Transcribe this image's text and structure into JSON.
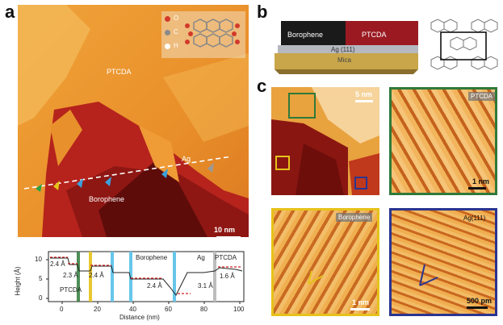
{
  "figure": {
    "panel_a": {
      "letter": "a",
      "legend_items": [
        {
          "symbol": "O",
          "color": "#d23a2a"
        },
        {
          "symbol": "C",
          "color": "#8a8a8a"
        },
        {
          "symbol": "H",
          "color": "#ffffff"
        }
      ],
      "region_labels": {
        "ptcda": "PTCDA",
        "borophene": "Borophene",
        "ag": "Ag"
      },
      "scale_bar": "10 nm"
    },
    "profile": {
      "y_axis_label": "Height (Å)",
      "x_axis_label": "Distance (nm)",
      "y_ticks": [
        "10",
        "5",
        "0"
      ],
      "x_ticks": [
        "0",
        "20",
        "40",
        "60",
        "80",
        "100"
      ],
      "region_labels": [
        "PTCDA",
        "Borophene",
        "Ag",
        "PTCDA"
      ],
      "step_labels": [
        "2.4 Å",
        "2.3 Å",
        "2.4 Å",
        "2.4 Å",
        "3.1 Å",
        "1.6 Å"
      ]
    },
    "panel_b": {
      "letter": "b",
      "layer_left": "Borophene",
      "layer_right": "PTCDA",
      "substrate_ag": "Ag (111)",
      "substrate_mica": "Mica"
    },
    "panel_c": {
      "letter": "c",
      "overview_scale": "5 nm",
      "ptcda_label": "PTCDA",
      "ptcda_scale": "1 nm",
      "borophene_label": "Borophene",
      "borophene_scale": "1 nm",
      "ag_label": "Ag(111)",
      "ag_scale": "500 pm"
    },
    "colors": {
      "ptcda_green": "#2f7a3a",
      "borophene_yellow": "#e6c21a",
      "ag_blue": "#2a3590",
      "step_blue": "#66c6ea",
      "profile_red": "#d02020"
    }
  }
}
